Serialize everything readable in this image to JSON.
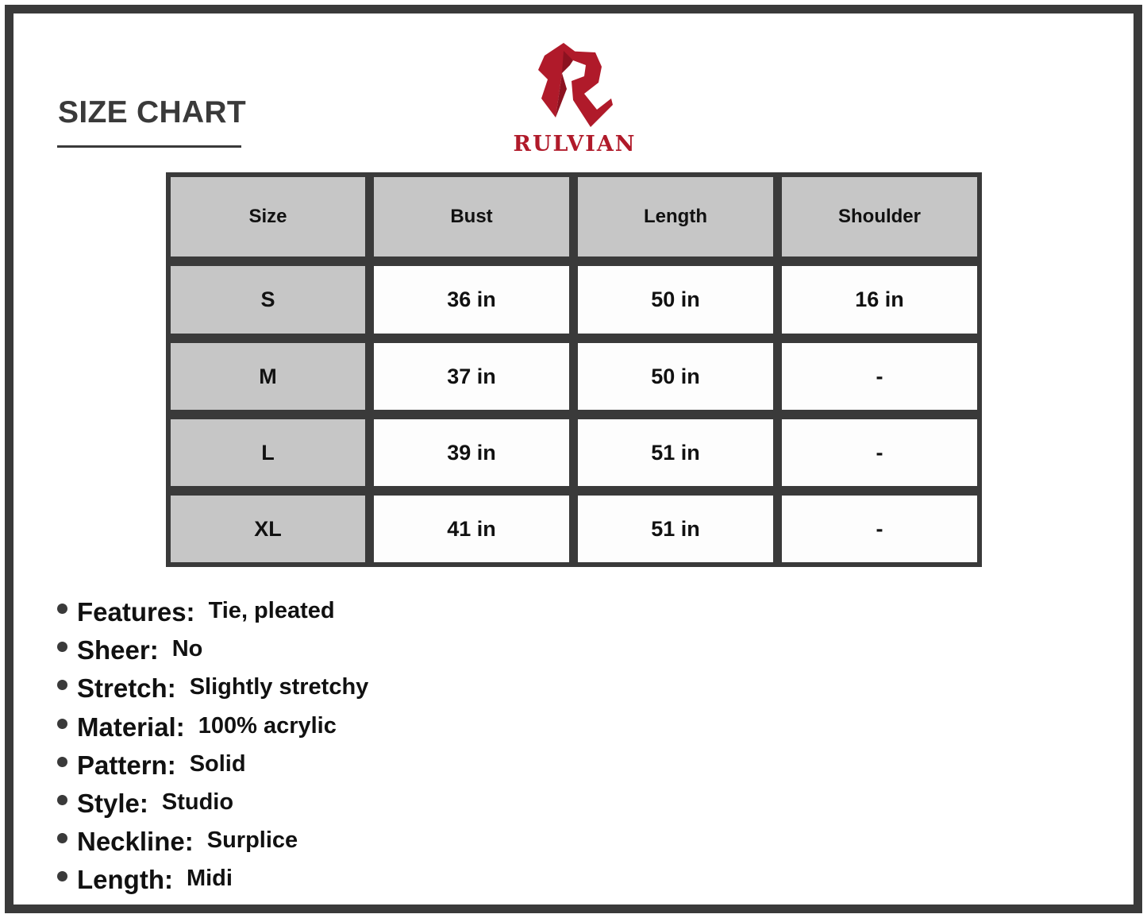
{
  "title": "SIZE CHART",
  "brand": {
    "name": "RULVIAN",
    "color": "#b01a2a"
  },
  "table": {
    "headers": [
      "Size",
      "Bust",
      "Length",
      "Shoulder"
    ],
    "rows": [
      [
        "S",
        "36 in",
        "50 in",
        "16 in"
      ],
      [
        "M",
        "37 in",
        "50 in",
        "-"
      ],
      [
        "L",
        "39 in",
        "51 in",
        "-"
      ],
      [
        "XL",
        "41 in",
        "51 in",
        "-"
      ]
    ]
  },
  "features": [
    {
      "label": "Features:",
      "value": "Tie, pleated"
    },
    {
      "label": "Sheer:",
      "value": "No"
    },
    {
      "label": "Stretch:",
      "value": "Slightly stretchy"
    },
    {
      "label": "Material:",
      "value": "100% acrylic"
    },
    {
      "label": "Pattern:",
      "value": "Solid"
    },
    {
      "label": "Style:",
      "value": "Studio"
    },
    {
      "label": "Neckline:",
      "value": "Surplice"
    },
    {
      "label": "Length:",
      "value": "Midi"
    }
  ]
}
